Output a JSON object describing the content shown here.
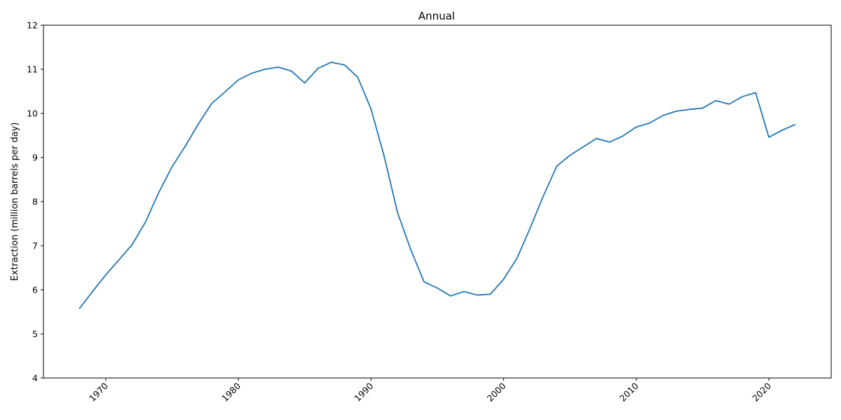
{
  "chart_data": {
    "type": "line",
    "title": "Annual",
    "xlabel": "",
    "ylabel": "Extraction (million barrels per day)",
    "xlim": [
      1965.3,
      2024.7
    ],
    "ylim": [
      4,
      12
    ],
    "x_ticks": [
      1970,
      1980,
      1990,
      2000,
      2010,
      2020
    ],
    "y_ticks": [
      4,
      5,
      6,
      7,
      8,
      9,
      10,
      11,
      12
    ],
    "grid": false,
    "line_color": "#1f77b4",
    "series": [
      {
        "x": [
          1968,
          1969,
          1970,
          1971,
          1972,
          1973,
          1974,
          1975,
          1976,
          1977,
          1978,
          1979,
          1980,
          1981,
          1982,
          1983,
          1984,
          1985,
          1986,
          1987,
          1988,
          1989,
          1990,
          1991,
          1992,
          1993,
          1994,
          1995,
          1996,
          1997,
          1998,
          1999,
          2000,
          2001,
          2002,
          2003,
          2004,
          2005,
          2006,
          2007,
          2008,
          2009,
          2010,
          2011,
          2012,
          2013,
          2014,
          2015,
          2016,
          2017,
          2018,
          2019,
          2020,
          2021,
          2022
        ],
        "values": [
          5.57,
          5.96,
          6.34,
          6.68,
          7.03,
          7.54,
          8.21,
          8.79,
          9.26,
          9.77,
          10.23,
          10.49,
          10.76,
          10.91,
          11.0,
          11.05,
          10.96,
          10.69,
          11.02,
          11.16,
          11.1,
          10.82,
          10.1,
          9.02,
          7.75,
          6.91,
          6.18,
          6.04,
          5.86,
          5.96,
          5.88,
          5.9,
          6.24,
          6.71,
          7.4,
          8.13,
          8.8,
          9.05,
          9.24,
          9.43,
          9.35,
          9.49,
          9.69,
          9.78,
          9.95,
          10.05,
          10.09,
          10.12,
          10.29,
          10.21,
          10.38,
          10.47,
          9.46,
          9.62,
          9.75
        ]
      }
    ]
  }
}
